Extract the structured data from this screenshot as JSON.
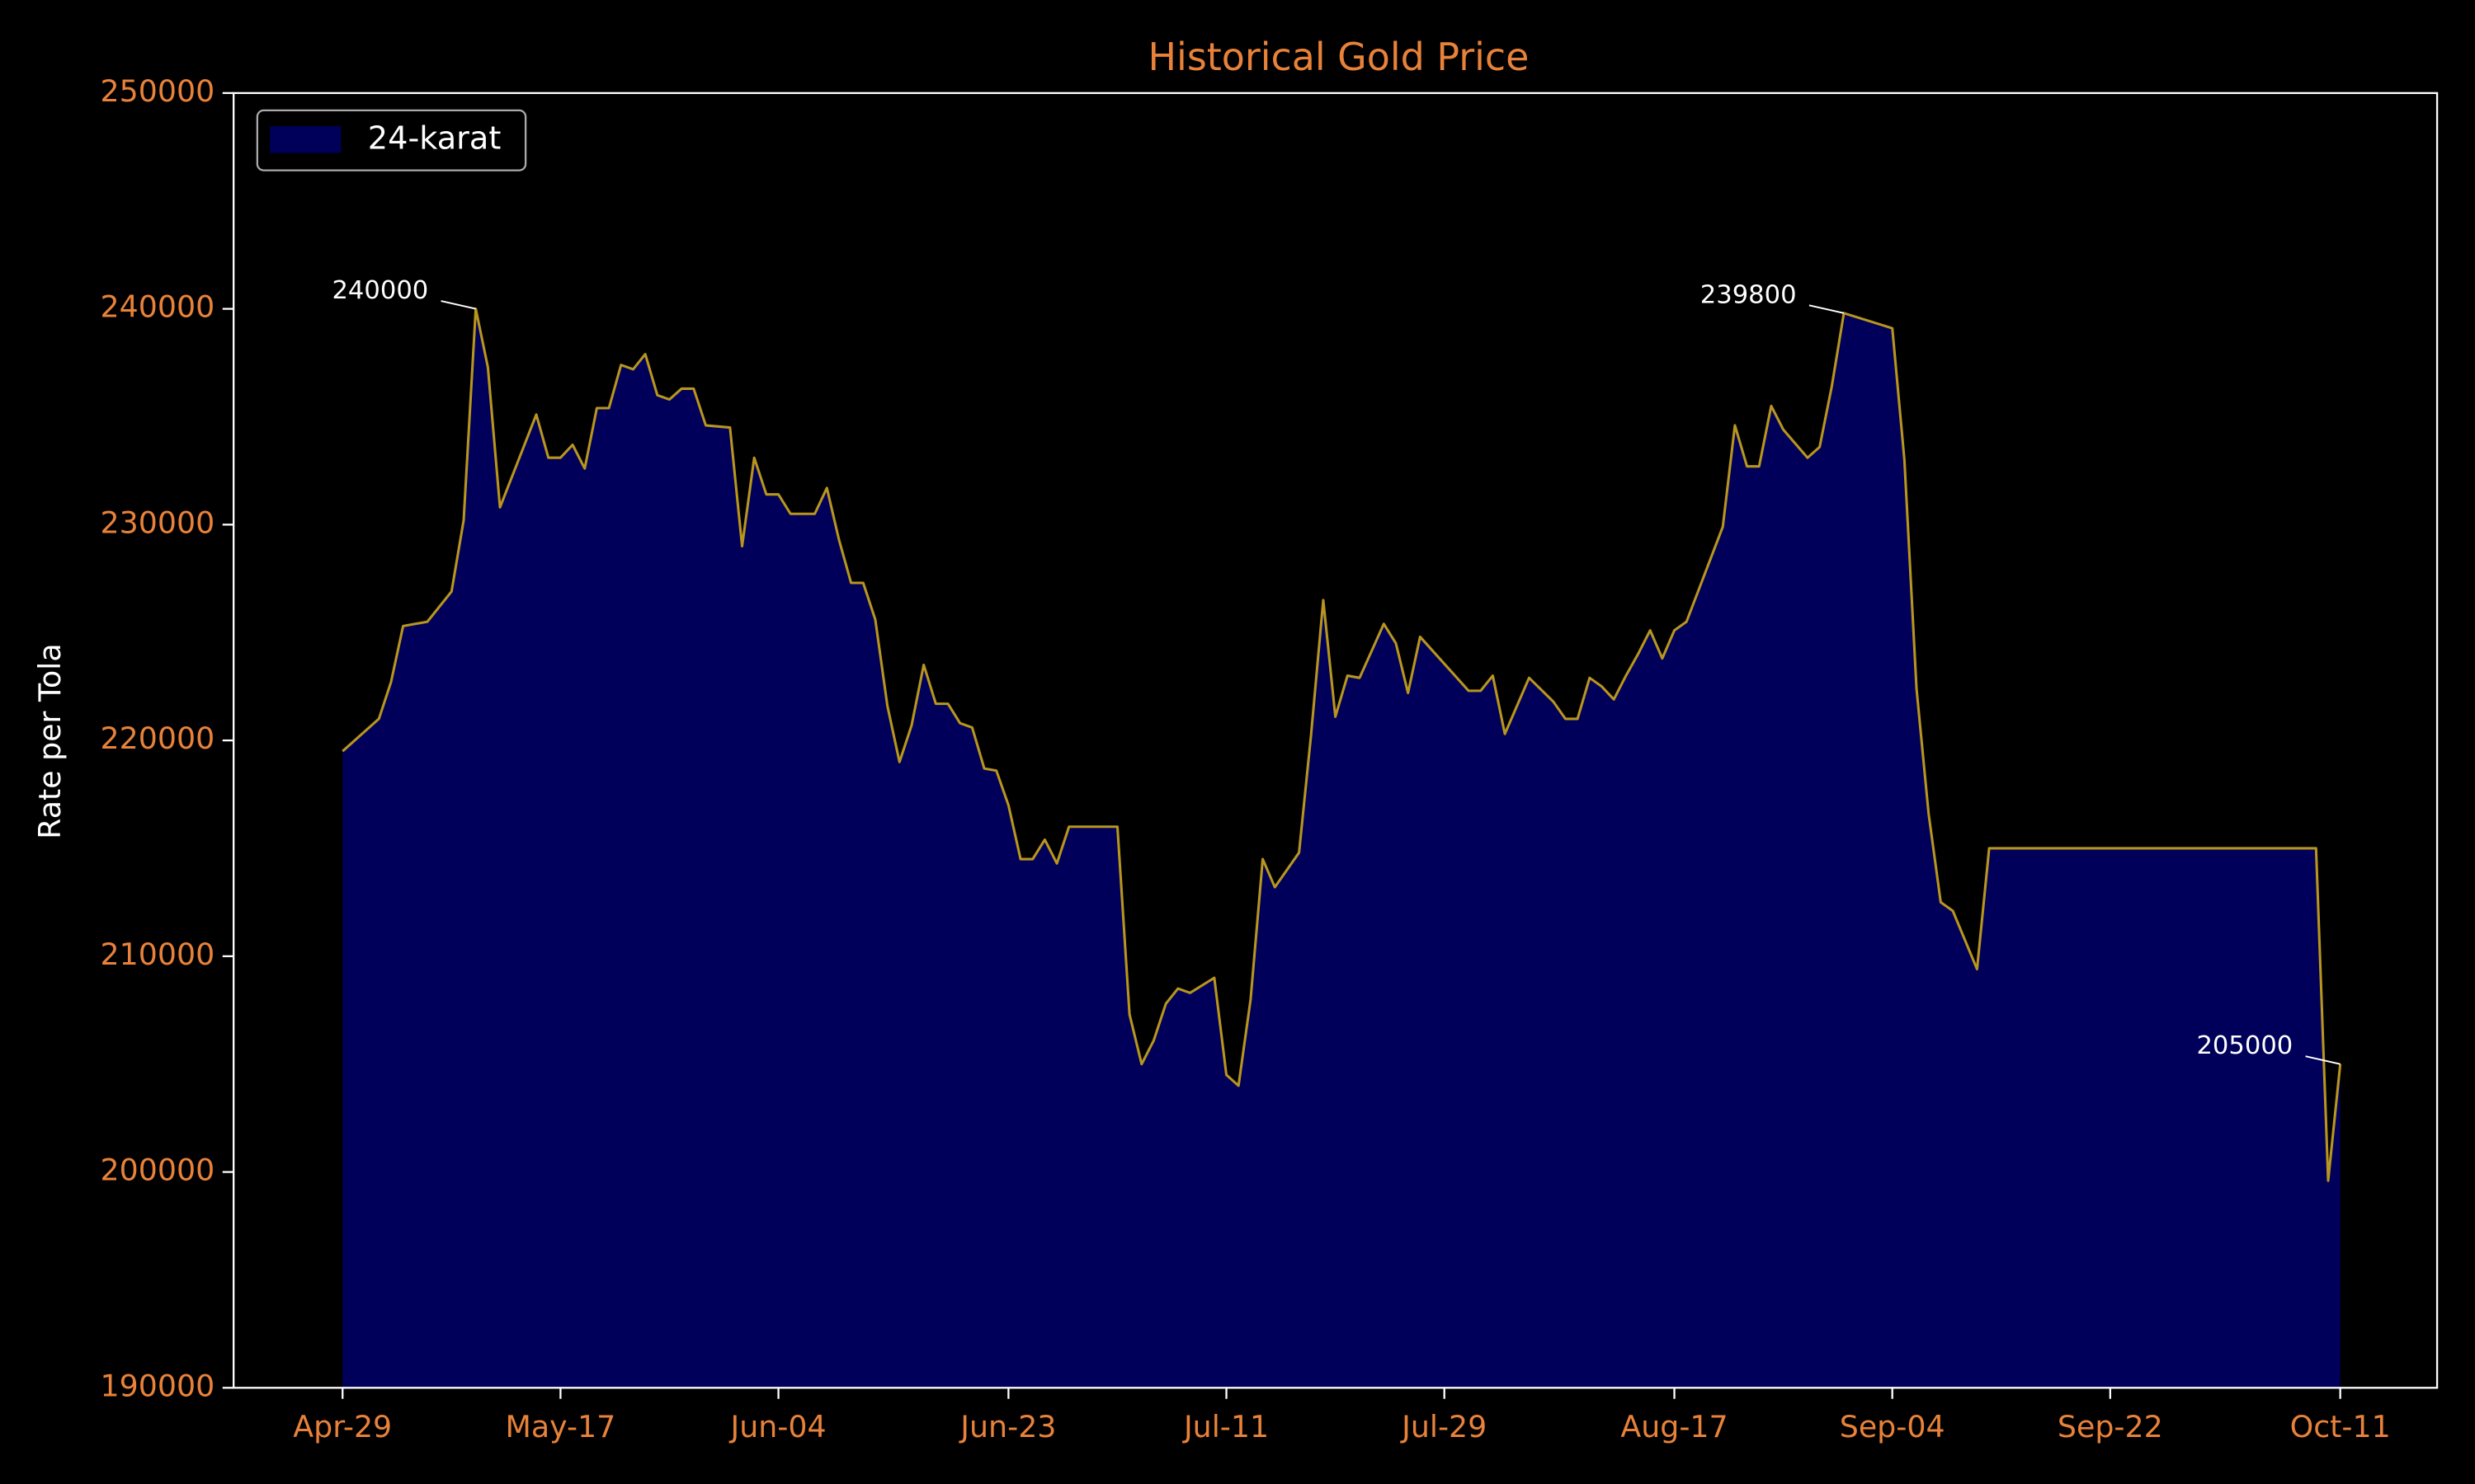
{
  "chart_data": {
    "type": "area",
    "title": "Historical Gold Price",
    "ylabel": "Rate per Tola",
    "x": [
      "Apr-29",
      "May-02",
      "May-03",
      "May-04",
      "May-06",
      "May-08",
      "May-09",
      "May-10",
      "May-11",
      "May-12",
      "May-15",
      "May-16",
      "May-17",
      "May-18",
      "May-19",
      "May-20",
      "May-21",
      "May-22",
      "May-23",
      "May-24",
      "May-25",
      "May-26",
      "May-27",
      "May-28",
      "May-29",
      "May-31",
      "Jun-01",
      "Jun-02",
      "Jun-03",
      "Jun-04",
      "Jun-05",
      "Jun-07",
      "Jun-08",
      "Jun-09",
      "Jun-10",
      "Jun-11",
      "Jun-12",
      "Jun-13",
      "Jun-14",
      "Jun-15",
      "Jun-16",
      "Jun-17",
      "Jun-18",
      "Jun-19",
      "Jun-20",
      "Jun-21",
      "Jun-22",
      "Jun-23",
      "Jun-24",
      "Jun-25",
      "Jun-26",
      "Jun-27",
      "Jun-28",
      "Jul-02",
      "Jul-03",
      "Jul-04",
      "Jul-05",
      "Jul-06",
      "Jul-07",
      "Jul-08",
      "Jul-10",
      "Jul-11",
      "Jul-12",
      "Jul-13",
      "Jul-14",
      "Jul-15",
      "Jul-17",
      "Jul-18",
      "Jul-19",
      "Jul-20",
      "Jul-21",
      "Jul-22",
      "Jul-24",
      "Jul-25",
      "Jul-26",
      "Jul-27",
      "Jul-31",
      "Aug-01",
      "Aug-02",
      "Aug-03",
      "Aug-05",
      "Aug-07",
      "Aug-08",
      "Aug-09",
      "Aug-10",
      "Aug-11",
      "Aug-12",
      "Aug-13",
      "Aug-14",
      "Aug-15",
      "Aug-16",
      "Aug-17",
      "Aug-18",
      "Aug-21",
      "Aug-22",
      "Aug-23",
      "Aug-24",
      "Aug-25",
      "Aug-26",
      "Aug-28",
      "Aug-29",
      "Aug-30",
      "Aug-31",
      "Sep-04",
      "Sep-05",
      "Sep-06",
      "Sep-07",
      "Sep-08",
      "Sep-09",
      "Sep-11",
      "Sep-12",
      "Oct-09",
      "Oct-10",
      "Oct-11"
    ],
    "series": [
      {
        "name": "24-karat",
        "color": "#00005a",
        "line_color": "#b8961e",
        "values": [
          219500,
          221000,
          222700,
          225300,
          225500,
          226900,
          230200,
          240000,
          237300,
          230800,
          235100,
          233100,
          233100,
          233700,
          232600,
          235400,
          235400,
          237400,
          237200,
          237900,
          236000,
          235800,
          236300,
          236300,
          234600,
          234500,
          229000,
          233100,
          231400,
          231400,
          230500,
          230500,
          231700,
          229300,
          227300,
          227300,
          225600,
          221600,
          219000,
          220700,
          223500,
          221700,
          221700,
          220800,
          220600,
          218700,
          218600,
          217000,
          214500,
          214500,
          215400,
          214300,
          216000,
          216000,
          207300,
          205000,
          206100,
          207800,
          208500,
          208300,
          209000,
          204500,
          204000,
          208000,
          214500,
          213200,
          214800,
          220300,
          226500,
          221100,
          223000,
          222900,
          225400,
          224500,
          222200,
          224800,
          222300,
          222300,
          223000,
          220300,
          222900,
          221800,
          221000,
          221000,
          222900,
          222500,
          221900,
          223000,
          224000,
          225100,
          223800,
          225100,
          225500,
          229900,
          234600,
          232700,
          232700,
          235500,
          234400,
          233100,
          233600,
          236400,
          239800,
          239100,
          233000,
          222400,
          216600,
          212500,
          212100,
          209400,
          215000,
          215000,
          199600,
          205000
        ]
      }
    ],
    "annotations": [
      {
        "x": "May-10",
        "value": 240000
      },
      {
        "x": "Aug-31",
        "value": 239800
      },
      {
        "x": "Oct-11",
        "value": 205000
      }
    ],
    "xlim": [
      "Apr-20",
      "Oct-19"
    ],
    "xticks": [
      "Apr-29",
      "May-17",
      "Jun-04",
      "Jun-23",
      "Jul-11",
      "Jul-29",
      "Aug-17",
      "Sep-04",
      "Sep-22",
      "Oct-11"
    ],
    "ylim": [
      190000,
      250000
    ],
    "yticks": [
      190000,
      200000,
      210000,
      220000,
      230000,
      240000,
      250000
    ],
    "legend": "upper left",
    "grid": false
  }
}
